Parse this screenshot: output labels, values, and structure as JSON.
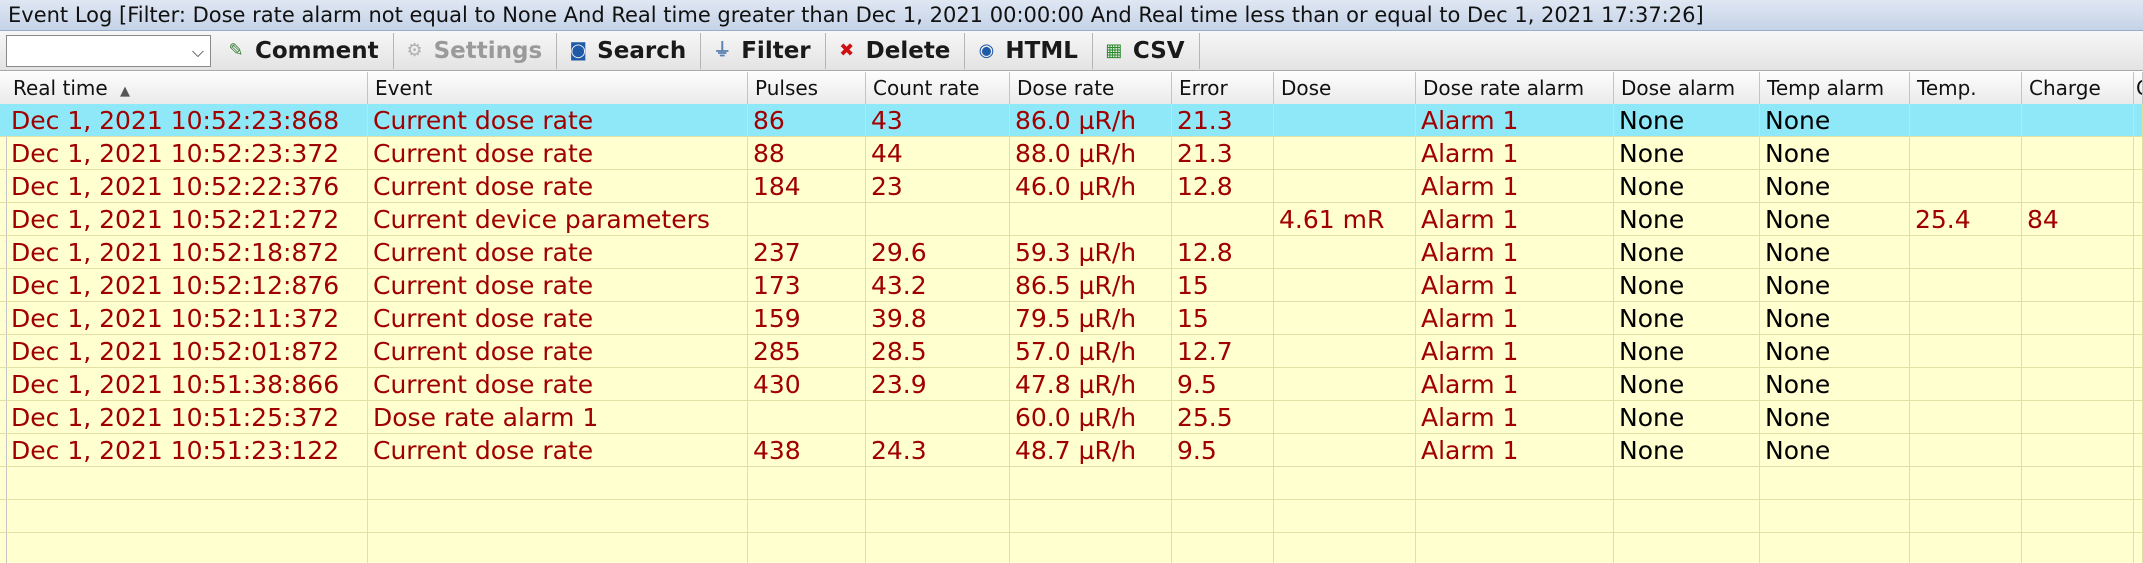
{
  "window": {
    "title": "Event Log  [Filter:  Dose rate alarm not equal to None And Real time greater than Dec 1, 2021  00:00:00 And Real time less than or equal to Dec 1, 2021  17:37:26]"
  },
  "toolbar": {
    "combo_value": "",
    "comment_label": "Comment",
    "settings_label": "Settings",
    "search_label": "Search",
    "filter_label": "Filter",
    "delete_label": "Delete",
    "html_label": "HTML",
    "csv_label": "CSV"
  },
  "table": {
    "columns": [
      "Real time",
      "Event",
      "Pulses",
      "Count rate",
      "Dose rate",
      "Error",
      "Dose",
      "Dose rate alarm",
      "Dose alarm",
      "Temp alarm",
      "Temp.",
      "Charge",
      "C"
    ],
    "rows": [
      [
        "Dec 1, 2021  10:52:23:868",
        "Current dose rate",
        "86",
        "43",
        "86.0 µR/h",
        "21.3",
        "",
        "Alarm 1",
        "None",
        "None",
        "",
        "",
        ""
      ],
      [
        "Dec 1, 2021  10:52:23:372",
        "Current dose rate",
        "88",
        "44",
        "88.0 µR/h",
        "21.3",
        "",
        "Alarm 1",
        "None",
        "None",
        "",
        "",
        ""
      ],
      [
        "Dec 1, 2021  10:52:22:376",
        "Current dose rate",
        "184",
        "23",
        "46.0 µR/h",
        "12.8",
        "",
        "Alarm 1",
        "None",
        "None",
        "",
        "",
        ""
      ],
      [
        "Dec 1, 2021  10:52:21:272",
        "Current device parameters",
        "",
        "",
        "",
        "",
        "4.61 mR",
        "Alarm 1",
        "None",
        "None",
        "25.4",
        "84",
        ""
      ],
      [
        "Dec 1, 2021  10:52:18:872",
        "Current dose rate",
        "237",
        "29.6",
        "59.3 µR/h",
        "12.8",
        "",
        "Alarm 1",
        "None",
        "None",
        "",
        "",
        ""
      ],
      [
        "Dec 1, 2021  10:52:12:876",
        "Current dose rate",
        "173",
        "43.2",
        "86.5 µR/h",
        "15",
        "",
        "Alarm 1",
        "None",
        "None",
        "",
        "",
        ""
      ],
      [
        "Dec 1, 2021  10:52:11:372",
        "Current dose rate",
        "159",
        "39.8",
        "79.5 µR/h",
        "15",
        "",
        "Alarm 1",
        "None",
        "None",
        "",
        "",
        ""
      ],
      [
        "Dec 1, 2021  10:52:01:872",
        "Current dose rate",
        "285",
        "28.5",
        "57.0 µR/h",
        "12.7",
        "",
        "Alarm 1",
        "None",
        "None",
        "",
        "",
        ""
      ],
      [
        "Dec 1, 2021  10:51:38:866",
        "Current dose rate",
        "430",
        "23.9",
        "47.8 µR/h",
        "9.5",
        "",
        "Alarm 1",
        "None",
        "None",
        "",
        "",
        ""
      ],
      [
        "Dec 1, 2021  10:51:25:372",
        "Dose rate alarm 1",
        "",
        "",
        "60.0 µR/h",
        "25.5",
        "",
        "Alarm 1",
        "None",
        "None",
        "",
        "",
        ""
      ],
      [
        "Dec 1, 2021  10:51:23:122",
        "Current dose rate",
        "438",
        "24.3",
        "48.7 µR/h",
        "9.5",
        "",
        "Alarm 1",
        "None",
        "None",
        "",
        "",
        ""
      ]
    ],
    "selected_row": 0,
    "sort_indicator": "▲"
  },
  "colors": {
    "row_bg": "#ffffcf",
    "selected_bg": "#8fe8f8",
    "text_red": "#a00000"
  }
}
